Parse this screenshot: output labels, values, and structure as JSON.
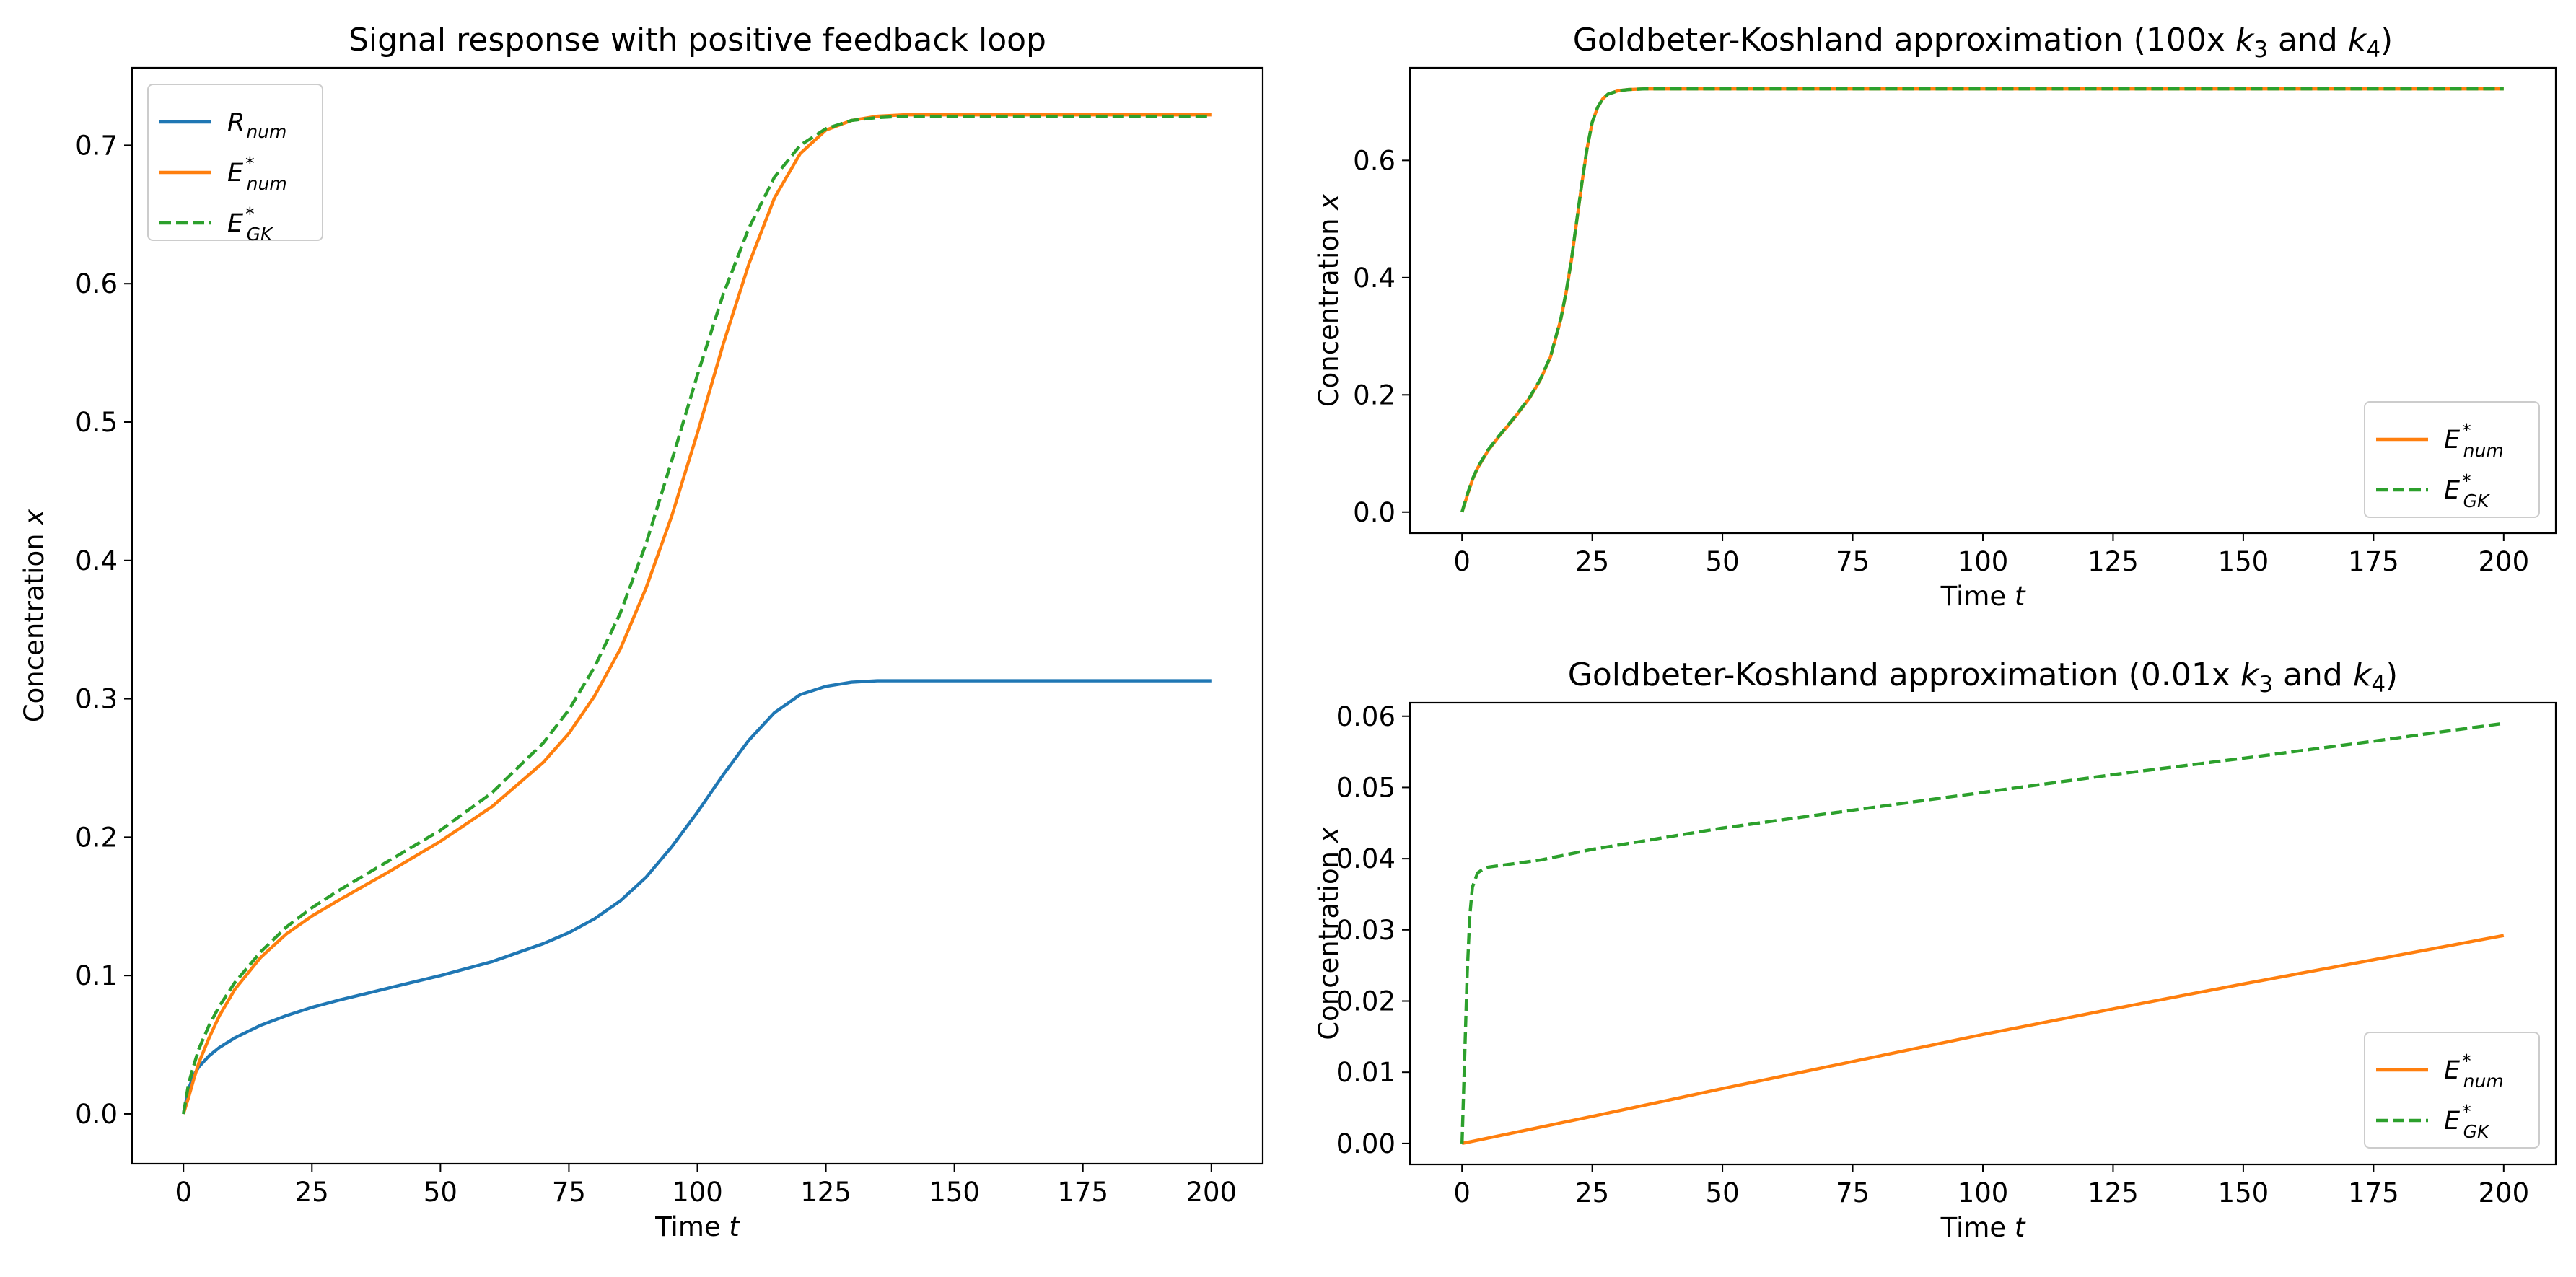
{
  "chart_data": [
    {
      "type": "line",
      "title_parts": [
        {
          "t": "Signal response with positive feedback loop"
        }
      ],
      "xlabel_parts": [
        {
          "t": "Time "
        },
        {
          "t": "t",
          "i": true
        }
      ],
      "ylabel_parts": [
        {
          "t": "Concentration "
        },
        {
          "t": "x",
          "i": true
        }
      ],
      "xlim": [
        -10,
        210
      ],
      "ylim": [
        -0.036,
        0.756
      ],
      "xticks": [
        0,
        25,
        50,
        75,
        100,
        125,
        150,
        175,
        200
      ],
      "xtick_labels": [
        "0",
        "25",
        "50",
        "75",
        "100",
        "125",
        "150",
        "175",
        "200"
      ],
      "yticks": [
        0.0,
        0.1,
        0.2,
        0.3,
        0.4,
        0.5,
        0.6,
        0.7
      ],
      "ytick_labels": [
        "0.0",
        "0.1",
        "0.2",
        "0.3",
        "0.4",
        "0.5",
        "0.6",
        "0.7"
      ],
      "legend": "top-left",
      "grid": false,
      "series": [
        {
          "label": {
            "base": "R",
            "sub": "num"
          },
          "color": "#1f77b4",
          "dash": "solid",
          "x": [
            0,
            1,
            2,
            3,
            5,
            7,
            10,
            15,
            20,
            25,
            30,
            40,
            50,
            60,
            70,
            75,
            80,
            85,
            90,
            95,
            100,
            105,
            110,
            115,
            120,
            125,
            130,
            135,
            140,
            150,
            160,
            175,
            200
          ],
          "y": [
            0.0,
            0.018,
            0.028,
            0.034,
            0.042,
            0.048,
            0.055,
            0.064,
            0.071,
            0.077,
            0.082,
            0.091,
            0.1,
            0.11,
            0.123,
            0.131,
            0.141,
            0.154,
            0.171,
            0.193,
            0.218,
            0.245,
            0.27,
            0.29,
            0.303,
            0.309,
            0.312,
            0.313,
            0.313,
            0.313,
            0.313,
            0.313,
            0.313
          ]
        },
        {
          "label": {
            "base": "E",
            "sup": "*",
            "sub": "num"
          },
          "color": "#ff7f0e",
          "dash": "solid",
          "x": [
            0,
            1,
            2,
            3,
            5,
            7,
            10,
            15,
            20,
            25,
            30,
            40,
            50,
            60,
            70,
            75,
            80,
            85,
            90,
            95,
            100,
            105,
            110,
            115,
            120,
            125,
            130,
            135,
            140,
            150,
            160,
            175,
            200
          ],
          "y": [
            0.0,
            0.012,
            0.025,
            0.037,
            0.055,
            0.071,
            0.09,
            0.113,
            0.13,
            0.143,
            0.154,
            0.175,
            0.197,
            0.222,
            0.254,
            0.275,
            0.302,
            0.336,
            0.38,
            0.432,
            0.492,
            0.556,
            0.614,
            0.662,
            0.694,
            0.711,
            0.718,
            0.721,
            0.722,
            0.722,
            0.722,
            0.722,
            0.722
          ]
        },
        {
          "label": {
            "base": "E",
            "sup": "*",
            "sub": "GK"
          },
          "color": "#2ca02c",
          "dash": "dashed",
          "x": [
            0,
            1,
            2,
            3,
            5,
            7,
            10,
            15,
            20,
            25,
            30,
            40,
            50,
            60,
            70,
            75,
            80,
            85,
            90,
            95,
            100,
            105,
            110,
            115,
            120,
            125,
            130,
            135,
            140,
            150,
            160,
            175,
            200
          ],
          "y": [
            0.0,
            0.022,
            0.035,
            0.047,
            0.064,
            0.078,
            0.095,
            0.117,
            0.135,
            0.149,
            0.161,
            0.183,
            0.205,
            0.232,
            0.268,
            0.292,
            0.323,
            0.362,
            0.412,
            0.472,
            0.534,
            0.592,
            0.64,
            0.677,
            0.7,
            0.712,
            0.718,
            0.72,
            0.721,
            0.721,
            0.721,
            0.721,
            0.721
          ]
        }
      ]
    },
    {
      "type": "line",
      "title_parts": [
        {
          "t": "Goldbeter-Koshland approximation (100x "
        },
        {
          "t": "k",
          "i": true
        },
        {
          "t": "3",
          "sub": true
        },
        {
          "t": " and "
        },
        {
          "t": "k",
          "i": true
        },
        {
          "t": "4",
          "sub": true
        },
        {
          "t": ")"
        }
      ],
      "xlabel_parts": [
        {
          "t": "Time "
        },
        {
          "t": "t",
          "i": true
        }
      ],
      "ylabel_parts": [
        {
          "t": "Concentration "
        },
        {
          "t": "x",
          "i": true
        }
      ],
      "xlim": [
        -10,
        210
      ],
      "ylim": [
        -0.036,
        0.758
      ],
      "xticks": [
        0,
        25,
        50,
        75,
        100,
        125,
        150,
        175,
        200
      ],
      "xtick_labels": [
        "0",
        "25",
        "50",
        "75",
        "100",
        "125",
        "150",
        "175",
        "200"
      ],
      "yticks": [
        0.0,
        0.2,
        0.4,
        0.6
      ],
      "ytick_labels": [
        "0.0",
        "0.2",
        "0.4",
        "0.6"
      ],
      "legend": "bottom-right",
      "grid": false,
      "series": [
        {
          "label": {
            "base": "E",
            "sup": "*",
            "sub": "num"
          },
          "color": "#ff7f0e",
          "dash": "solid",
          "x": [
            0,
            1,
            2,
            3,
            5,
            7,
            10,
            13,
            15,
            17,
            19,
            20,
            21,
            22,
            23,
            24,
            25,
            26,
            27,
            28,
            30,
            32,
            35,
            40,
            50,
            100,
            150,
            200
          ],
          "y": [
            0.0,
            0.028,
            0.055,
            0.075,
            0.105,
            0.128,
            0.16,
            0.195,
            0.225,
            0.265,
            0.33,
            0.375,
            0.43,
            0.495,
            0.56,
            0.62,
            0.665,
            0.69,
            0.705,
            0.713,
            0.719,
            0.721,
            0.722,
            0.722,
            0.722,
            0.722,
            0.722,
            0.722
          ]
        },
        {
          "label": {
            "base": "E",
            "sup": "*",
            "sub": "GK"
          },
          "color": "#2ca02c",
          "dash": "dashed",
          "x": [
            0,
            1,
            2,
            3,
            5,
            7,
            10,
            13,
            15,
            17,
            19,
            20,
            21,
            22,
            23,
            24,
            25,
            26,
            27,
            28,
            30,
            32,
            35,
            40,
            50,
            100,
            150,
            200
          ],
          "y": [
            0.0,
            0.03,
            0.056,
            0.076,
            0.106,
            0.129,
            0.161,
            0.196,
            0.226,
            0.266,
            0.331,
            0.376,
            0.431,
            0.496,
            0.561,
            0.62,
            0.665,
            0.69,
            0.705,
            0.713,
            0.719,
            0.721,
            0.722,
            0.722,
            0.722,
            0.722,
            0.722,
            0.722
          ]
        }
      ]
    },
    {
      "type": "line",
      "title_parts": [
        {
          "t": "Goldbeter-Koshland approximation (0.01x "
        },
        {
          "t": "k",
          "i": true
        },
        {
          "t": "3",
          "sub": true
        },
        {
          "t": " and "
        },
        {
          "t": "k",
          "i": true
        },
        {
          "t": "4",
          "sub": true
        },
        {
          "t": ")"
        }
      ],
      "xlabel_parts": [
        {
          "t": "Time "
        },
        {
          "t": "t",
          "i": true
        }
      ],
      "ylabel_parts": [
        {
          "t": "Concentration "
        },
        {
          "t": "x",
          "i": true
        }
      ],
      "xlim": [
        -10,
        210
      ],
      "ylim": [
        -0.00295,
        0.0619
      ],
      "xticks": [
        0,
        25,
        50,
        75,
        100,
        125,
        150,
        175,
        200
      ],
      "xtick_labels": [
        "0",
        "25",
        "50",
        "75",
        "100",
        "125",
        "150",
        "175",
        "200"
      ],
      "yticks": [
        0.0,
        0.01,
        0.02,
        0.03,
        0.04,
        0.05,
        0.06
      ],
      "ytick_labels": [
        "0.00",
        "0.01",
        "0.02",
        "0.03",
        "0.04",
        "0.05",
        "0.06"
      ],
      "legend": "bottom-right",
      "grid": false,
      "series": [
        {
          "label": {
            "base": "E",
            "sup": "*",
            "sub": "num"
          },
          "color": "#ff7f0e",
          "dash": "solid",
          "x": [
            0,
            25,
            50,
            75,
            100,
            125,
            150,
            175,
            200
          ],
          "y": [
            0.0,
            0.0038,
            0.0077,
            0.0115,
            0.0153,
            0.0189,
            0.0224,
            0.0258,
            0.0292
          ]
        },
        {
          "label": {
            "base": "E",
            "sup": "*",
            "sub": "GK"
          },
          "color": "#2ca02c",
          "dash": "dashed",
          "x": [
            0,
            0.5,
            1,
            1.5,
            2,
            3,
            4,
            5,
            7,
            10,
            15,
            25,
            50,
            75,
            100,
            125,
            150,
            175,
            200
          ],
          "y": [
            0.0,
            0.012,
            0.024,
            0.032,
            0.036,
            0.038,
            0.0385,
            0.0388,
            0.039,
            0.0393,
            0.0398,
            0.0413,
            0.0443,
            0.0468,
            0.0493,
            0.0518,
            0.0541,
            0.0565,
            0.059
          ]
        }
      ]
    }
  ]
}
